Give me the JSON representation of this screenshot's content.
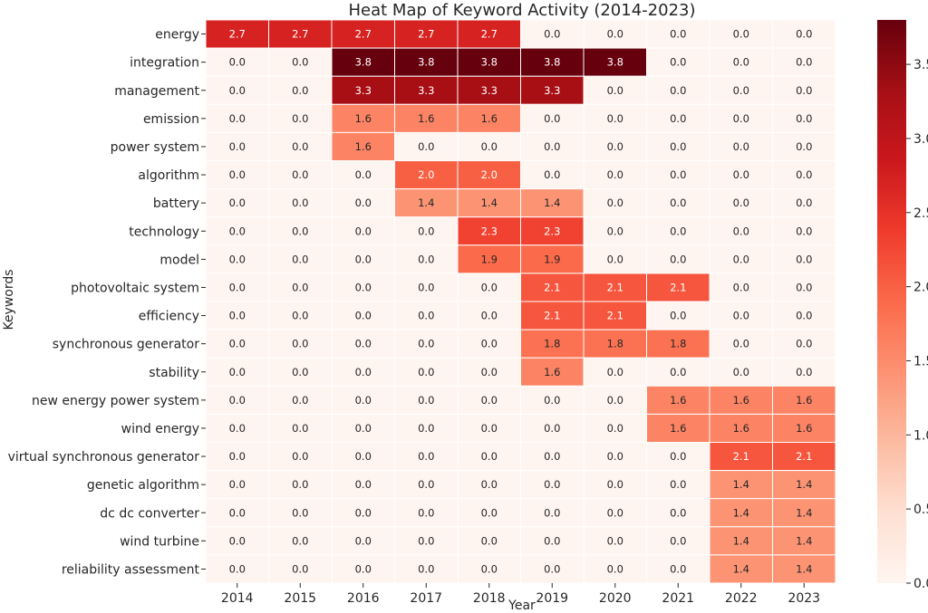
{
  "chart_data": {
    "type": "heatmap",
    "title": "Heat Map of Keyword Activity (2014-2023)",
    "xlabel": "Year",
    "ylabel": "Keywords",
    "columns": [
      "2014",
      "2015",
      "2016",
      "2017",
      "2018",
      "2019",
      "2020",
      "2021",
      "2022",
      "2023"
    ],
    "rows": [
      "energy",
      "integration",
      "management",
      "emission",
      "power system",
      "algorithm",
      "battery",
      "technology",
      "model",
      "photovoltaic system",
      "efficiency",
      "synchronous generator",
      "stability",
      "new energy power system",
      "wind energy",
      "virtual synchronous generator",
      "genetic algorithm",
      "dc dc converter",
      "wind turbine",
      "reliability assessment"
    ],
    "values": [
      [
        2.7,
        2.7,
        2.7,
        2.7,
        2.7,
        0.0,
        0.0,
        0.0,
        0.0,
        0.0
      ],
      [
        0.0,
        0.0,
        3.8,
        3.8,
        3.8,
        3.8,
        3.8,
        0.0,
        0.0,
        0.0
      ],
      [
        0.0,
        0.0,
        3.3,
        3.3,
        3.3,
        3.3,
        0.0,
        0.0,
        0.0,
        0.0
      ],
      [
        0.0,
        0.0,
        1.6,
        1.6,
        1.6,
        0.0,
        0.0,
        0.0,
        0.0,
        0.0
      ],
      [
        0.0,
        0.0,
        1.6,
        0.0,
        0.0,
        0.0,
        0.0,
        0.0,
        0.0,
        0.0
      ],
      [
        0.0,
        0.0,
        0.0,
        2.0,
        2.0,
        0.0,
        0.0,
        0.0,
        0.0,
        0.0
      ],
      [
        0.0,
        0.0,
        0.0,
        1.4,
        1.4,
        1.4,
        0.0,
        0.0,
        0.0,
        0.0
      ],
      [
        0.0,
        0.0,
        0.0,
        0.0,
        2.3,
        2.3,
        0.0,
        0.0,
        0.0,
        0.0
      ],
      [
        0.0,
        0.0,
        0.0,
        0.0,
        1.9,
        1.9,
        0.0,
        0.0,
        0.0,
        0.0
      ],
      [
        0.0,
        0.0,
        0.0,
        0.0,
        0.0,
        2.1,
        2.1,
        2.1,
        0.0,
        0.0
      ],
      [
        0.0,
        0.0,
        0.0,
        0.0,
        0.0,
        2.1,
        2.1,
        0.0,
        0.0,
        0.0
      ],
      [
        0.0,
        0.0,
        0.0,
        0.0,
        0.0,
        1.8,
        1.8,
        1.8,
        0.0,
        0.0
      ],
      [
        0.0,
        0.0,
        0.0,
        0.0,
        0.0,
        1.6,
        0.0,
        0.0,
        0.0,
        0.0
      ],
      [
        0.0,
        0.0,
        0.0,
        0.0,
        0.0,
        0.0,
        0.0,
        1.6,
        1.6,
        1.6
      ],
      [
        0.0,
        0.0,
        0.0,
        0.0,
        0.0,
        0.0,
        0.0,
        1.6,
        1.6,
        1.6
      ],
      [
        0.0,
        0.0,
        0.0,
        0.0,
        0.0,
        0.0,
        0.0,
        0.0,
        2.1,
        2.1
      ],
      [
        0.0,
        0.0,
        0.0,
        0.0,
        0.0,
        0.0,
        0.0,
        0.0,
        1.4,
        1.4
      ],
      [
        0.0,
        0.0,
        0.0,
        0.0,
        0.0,
        0.0,
        0.0,
        0.0,
        1.4,
        1.4
      ],
      [
        0.0,
        0.0,
        0.0,
        0.0,
        0.0,
        0.0,
        0.0,
        0.0,
        1.4,
        1.4
      ],
      [
        0.0,
        0.0,
        0.0,
        0.0,
        0.0,
        0.0,
        0.0,
        0.0,
        1.4,
        1.4
      ]
    ],
    "value_format": "one-decimal",
    "colormap": "Reds",
    "color_range": [
      0,
      3.8
    ],
    "colorbar": {
      "ticks": [
        0.0,
        0.5,
        1.0,
        1.5,
        2.0,
        2.5,
        3.0,
        3.5
      ],
      "tick_labels": [
        "0.0",
        "0.5",
        "1.0",
        "1.5",
        "2.0",
        "2.5",
        "3.0",
        "3.5"
      ],
      "placement": "right"
    },
    "grid_line_color": "#ffffff",
    "text_color_dark": "#262626",
    "text_color_light": "#ffffff",
    "cmap_stops": [
      "#fff5f0",
      "#fee0d2",
      "#fcbba1",
      "#fc9272",
      "#fb6a4a",
      "#ef3b2c",
      "#cb181d",
      "#a50f15",
      "#67000d"
    ]
  }
}
